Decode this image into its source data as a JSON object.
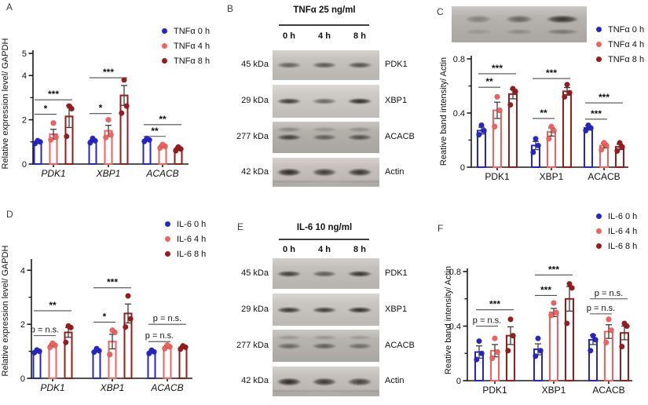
{
  "colors": {
    "series": [
      "#2525cd",
      "#f4615c",
      "#9b1b1b"
    ],
    "axis": "#1a1a1a",
    "sig": "#4d4d4d",
    "error_bar": "#3c3c3c"
  },
  "panels": {
    "A": {
      "label": "A"
    },
    "B": {
      "label": "B",
      "title": "TNFα 25 ng/ml",
      "lanes": [
        "0 h",
        "4 h",
        "8 h"
      ],
      "rows": [
        {
          "mw": "45 kDa",
          "protein": "PDK1",
          "band_darkness": [
            0.62,
            0.68,
            0.72
          ],
          "tone": "#c5c1bd"
        },
        {
          "mw": "29 kDa",
          "protein": "XBP1",
          "band_darkness": [
            0.88,
            0.6,
            0.97
          ],
          "tone": "#cdc9c5"
        },
        {
          "mw": "277 kDa",
          "protein": "ACACB",
          "band_darkness": [
            0.82,
            0.6,
            0.7
          ],
          "tone": "#b4b0aa"
        },
        {
          "mw": "42 kDa",
          "protein": "Actin",
          "band_darkness": [
            0.97,
            0.85,
            0.9
          ],
          "tone": "#c6c1bc"
        }
      ]
    },
    "C": {
      "label": "C",
      "strip": {
        "tone": "#b6b3ae",
        "lane_darkness": [
          0.35,
          0.55,
          0.9
        ]
      }
    },
    "D": {
      "label": "D"
    },
    "E": {
      "label": "E",
      "title": "IL-6 10 ng/ml",
      "lanes": [
        "0 h",
        "4 h",
        "8 h"
      ],
      "rows": [
        {
          "mw": "45 kDa",
          "protein": "PDK1",
          "band_darkness": [
            0.85,
            0.65,
            0.92
          ],
          "tone": "#c3bfbb"
        },
        {
          "mw": "29 kDa",
          "protein": "XBP1",
          "band_darkness": [
            0.9,
            0.85,
            0.95
          ],
          "tone": "#c9c5c1"
        },
        {
          "mw": "277 kDa",
          "protein": "ACACB",
          "band_darkness": [
            0.55,
            0.6,
            0.5
          ],
          "tone": "#b7b3ad"
        },
        {
          "mw": "42 kDa",
          "protein": "Actin",
          "band_darkness": [
            0.97,
            0.88,
            0.82
          ],
          "tone": "#c5c0bb"
        }
      ]
    },
    "F": {
      "label": "F"
    }
  },
  "chart_data": [
    {
      "id": "A",
      "type": "bar",
      "title": "",
      "xlabel": "",
      "ylabel": "Relative expression level/ GAPDH",
      "ylim": [
        0,
        5
      ],
      "grid": false,
      "legend_position": "top-right",
      "yticks": [
        {
          "v": 0,
          "t": "0"
        },
        {
          "v": 2,
          "t": "2"
        },
        {
          "v": 4,
          "t": "4"
        },
        {
          "v": 5,
          "t": "5"
        }
      ],
      "yticks_minor": [
        1,
        3
      ],
      "categories": [
        "PDK1",
        "XBP1",
        "ACACB"
      ],
      "categories_italic": true,
      "legend": [
        "TNFα 0 h",
        "TNFα 4 h",
        "TNFα 8 h"
      ],
      "series": [
        {
          "name": "TNFα 0 h",
          "values": [
            1.0,
            1.05,
            1.1
          ],
          "errors": [
            0.04,
            0.05,
            0.04
          ],
          "dots": [
            [
              0.93,
              1.0,
              1.06
            ],
            [
              0.96,
              1.05,
              1.16
            ],
            [
              1.02,
              1.09,
              1.16
            ]
          ]
        },
        {
          "name": "TNFα 4 h",
          "values": [
            1.35,
            1.5,
            0.8
          ],
          "errors": [
            0.22,
            0.25,
            0.05
          ],
          "dots": [
            [
              1.1,
              1.22,
              1.85
            ],
            [
              1.2,
              1.32,
              2.0
            ],
            [
              0.73,
              0.8,
              0.88
            ]
          ]
        },
        {
          "name": "TNFα 8 h",
          "values": [
            2.15,
            3.1,
            0.7
          ],
          "errors": [
            0.5,
            0.45,
            0.06
          ],
          "dots": [
            [
              1.25,
              2.5,
              2.62
            ],
            [
              2.3,
              2.62,
              3.8
            ],
            [
              0.6,
              0.68,
              0.77
            ]
          ]
        }
      ],
      "significance": [
        {
          "category": "PDK1",
          "from": 0,
          "to": 1,
          "label": "*",
          "y": 2.25
        },
        {
          "category": "PDK1",
          "from": 0,
          "to": 2,
          "label": "***",
          "y": 2.9
        },
        {
          "category": "XBP1",
          "from": 0,
          "to": 1,
          "label": "*",
          "y": 2.28
        },
        {
          "category": "XBP1",
          "from": 0,
          "to": 2,
          "label": "***",
          "y": 3.9
        },
        {
          "category": "ACACB",
          "from": 0,
          "to": 1,
          "label": "**",
          "y": 1.25
        },
        {
          "category": "ACACB",
          "from": 0,
          "to": 2,
          "label": "**",
          "y": 1.78
        }
      ]
    },
    {
      "id": "C",
      "type": "bar",
      "title": "",
      "xlabel": "",
      "ylabel": "Reative band intensity/ Actin",
      "ylim": [
        0,
        0.8
      ],
      "grid": false,
      "legend_position": "top-right",
      "yticks": [
        {
          "v": 0,
          "t": "0"
        },
        {
          "v": 0.4,
          "t": "0.4"
        },
        {
          "v": 0.8,
          "t": "0.8"
        }
      ],
      "yticks_minor": [
        0.2,
        0.6
      ],
      "categories": [
        "PDK1",
        "XBP1",
        "ACACB"
      ],
      "categories_italic": false,
      "legend": [
        "TNFα 0 h",
        "TNFα 4 h",
        "TNFα 8 h"
      ],
      "series": [
        {
          "name": "TNFα 0 h",
          "values": [
            0.27,
            0.16,
            0.29
          ],
          "errors": [
            0.025,
            0.03,
            0.015
          ],
          "dots": [
            [
              0.24,
              0.27,
              0.31
            ],
            [
              0.11,
              0.16,
              0.21
            ],
            [
              0.27,
              0.29,
              0.31
            ]
          ]
        },
        {
          "name": "TNFα 4 h",
          "values": [
            0.42,
            0.26,
            0.16
          ],
          "errors": [
            0.06,
            0.03,
            0.018
          ],
          "dots": [
            [
              0.3,
              0.42,
              0.52
            ],
            [
              0.21,
              0.27,
              0.3
            ],
            [
              0.13,
              0.16,
              0.18
            ]
          ]
        },
        {
          "name": "TNFα 8 h",
          "values": [
            0.54,
            0.56,
            0.15
          ],
          "errors": [
            0.035,
            0.028,
            0.02
          ],
          "dots": [
            [
              0.46,
              0.56,
              0.58
            ],
            [
              0.52,
              0.55,
              0.61
            ],
            [
              0.12,
              0.15,
              0.18
            ]
          ]
        }
      ],
      "significance": [
        {
          "category": "PDK1",
          "from": 0,
          "to": 1,
          "label": "**",
          "y": 0.59
        },
        {
          "category": "PDK1",
          "from": 0,
          "to": 2,
          "label": "***",
          "y": 0.69
        },
        {
          "category": "XBP1",
          "from": 0,
          "to": 1,
          "label": "**",
          "y": 0.36
        },
        {
          "category": "XBP1",
          "from": 0,
          "to": 2,
          "label": "***",
          "y": 0.655
        },
        {
          "category": "ACACB",
          "from": 0,
          "to": 1,
          "label": "***",
          "y": 0.355
        },
        {
          "category": "ACACB",
          "from": 0,
          "to": 2,
          "label": "***",
          "y": 0.475
        }
      ]
    },
    {
      "id": "D",
      "type": "bar",
      "title": "",
      "xlabel": "",
      "ylabel": "Relative expression level/ GAPDH",
      "ylim": [
        0,
        4.3
      ],
      "grid": false,
      "legend_position": "top-right",
      "yticks": [
        {
          "v": 0,
          "t": "0"
        },
        {
          "v": 2,
          "t": "2"
        },
        {
          "v": 4,
          "t": "4"
        }
      ],
      "yticks_minor": [
        1,
        3
      ],
      "categories": [
        "PDK1",
        "XBP1",
        "ACACB"
      ],
      "categories_italic": true,
      "legend": [
        "IL-6 0 h",
        "IL-6 4 h",
        "IL-6 8 h"
      ],
      "series": [
        {
          "name": "IL-6 0 h",
          "values": [
            1.0,
            1.02,
            0.98
          ],
          "errors": [
            0.03,
            0.03,
            0.03
          ],
          "dots": [
            [
              0.95,
              1.0,
              1.05
            ],
            [
              0.97,
              1.02,
              1.1
            ],
            [
              0.92,
              0.98,
              1.04
            ]
          ]
        },
        {
          "name": "IL-6 4 h",
          "values": [
            1.22,
            1.36,
            1.17
          ],
          "errors": [
            0.05,
            0.27,
            0.04
          ],
          "dots": [
            [
              1.15,
              1.22,
              1.3
            ],
            [
              0.88,
              1.7,
              1.78
            ],
            [
              1.1,
              1.17,
              1.23
            ]
          ]
        },
        {
          "name": "IL-6 8 h",
          "values": [
            1.7,
            2.4,
            1.15
          ],
          "errors": [
            0.18,
            0.35,
            0.04
          ],
          "dots": [
            [
              1.33,
              1.88,
              1.94
            ],
            [
              1.9,
              2.2,
              3.05
            ],
            [
              1.08,
              1.15,
              1.2
            ]
          ]
        }
      ],
      "significance": [
        {
          "category": "PDK1",
          "from": 0,
          "to": 1,
          "label": "p = n.s.",
          "y": 1.58
        },
        {
          "category": "PDK1",
          "from": 0,
          "to": 2,
          "label": "**",
          "y": 2.5
        },
        {
          "category": "XBP1",
          "from": 0,
          "to": 1,
          "label": "*",
          "y": 2.08
        },
        {
          "category": "XBP1",
          "from": 0,
          "to": 2,
          "label": "***",
          "y": 3.35
        },
        {
          "category": "ACACB",
          "from": 0,
          "to": 1,
          "label": "p = n.s.",
          "y": 1.36
        },
        {
          "category": "ACACB",
          "from": 0,
          "to": 2,
          "label": "p = n.s.",
          "y": 2.0
        }
      ]
    },
    {
      "id": "F",
      "type": "bar",
      "title": "",
      "xlabel": "",
      "ylabel": "Reative band intensity/ Actin",
      "ylim": [
        0,
        0.8
      ],
      "grid": false,
      "legend_position": "top-right",
      "yticks": [
        {
          "v": 0,
          "t": "0"
        },
        {
          "v": 0.4,
          "t": "0.4"
        },
        {
          "v": 0.8,
          "t": "0.8"
        }
      ],
      "yticks_minor": [
        0.2,
        0.6
      ],
      "categories": [
        "PDK1",
        "XBP1",
        "ACACB"
      ],
      "categories_italic": false,
      "legend": [
        "IL-6 0 h",
        "IL-6 4 h",
        "IL-6 8 h"
      ],
      "series": [
        {
          "name": "IL-6 0 h",
          "values": [
            0.21,
            0.23,
            0.3
          ],
          "errors": [
            0.045,
            0.04,
            0.035
          ],
          "dots": [
            [
              0.155,
              0.2,
              0.29
            ],
            [
              0.18,
              0.22,
              0.31
            ],
            [
              0.22,
              0.3,
              0.33
            ]
          ]
        },
        {
          "name": "IL-6 4 h",
          "values": [
            0.22,
            0.5,
            0.36
          ],
          "errors": [
            0.045,
            0.03,
            0.05
          ],
          "dots": [
            [
              0.165,
              0.21,
              0.31
            ],
            [
              0.48,
              0.5,
              0.57
            ],
            [
              0.28,
              0.37,
              0.45
            ]
          ]
        },
        {
          "name": "IL-6 8 h",
          "values": [
            0.33,
            0.6,
            0.35
          ],
          "errors": [
            0.065,
            0.09,
            0.05
          ],
          "dots": [
            [
              0.22,
              0.33,
              0.45
            ],
            [
              0.42,
              0.68,
              0.71
            ],
            [
              0.25,
              0.4,
              0.42
            ]
          ]
        }
      ],
      "significance": [
        {
          "category": "PDK1",
          "from": 0,
          "to": 1,
          "label": "p = n.s.",
          "y": 0.4
        },
        {
          "category": "PDK1",
          "from": 0,
          "to": 2,
          "label": "***",
          "y": 0.52
        },
        {
          "category": "XBP1",
          "from": 0,
          "to": 1,
          "label": "***",
          "y": 0.625
        },
        {
          "category": "XBP1",
          "from": 0,
          "to": 2,
          "label": "***",
          "y": 0.775
        },
        {
          "category": "ACACB",
          "from": 0,
          "to": 1,
          "label": "p = n.s.",
          "y": 0.49
        },
        {
          "category": "ACACB",
          "from": 0,
          "to": 2,
          "label": "p = n.s.",
          "y": 0.6
        }
      ]
    }
  ]
}
